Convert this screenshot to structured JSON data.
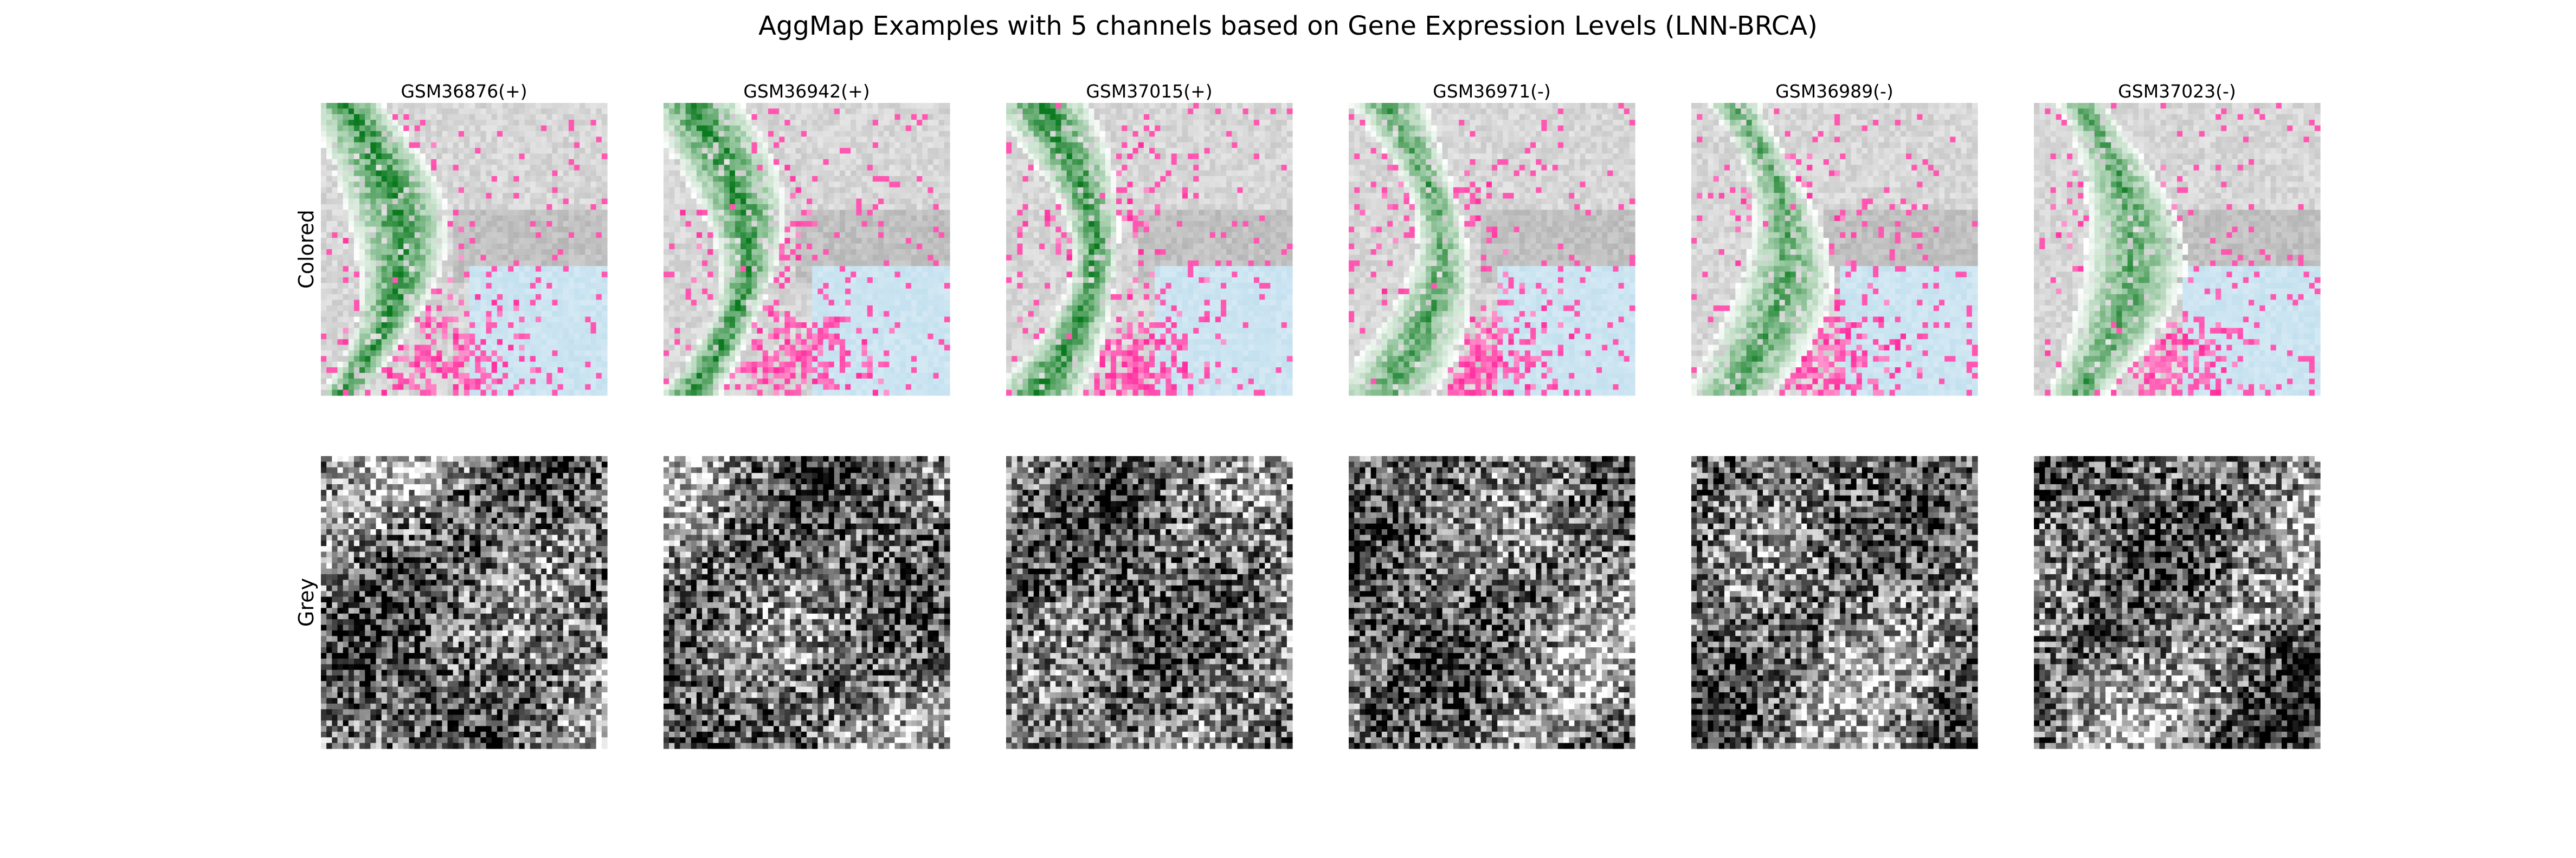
{
  "chart_data": {
    "type": "heatmap",
    "title": "AggMap Examples with 5 channels based on Gene Expression Levels (LNN-BRCA)",
    "grid": false,
    "axes_visible": false,
    "rows": [
      {
        "label": "Colored",
        "style": "colored"
      },
      {
        "label": "Grey",
        "style": "grey"
      }
    ],
    "samples": [
      {
        "name": "GSM36876(+)"
      },
      {
        "name": "GSM36942(+)"
      },
      {
        "name": "GSM37015(+)"
      },
      {
        "name": "GSM36971(-)"
      },
      {
        "name": "GSM36989(-)"
      },
      {
        "name": "GSM37023(-)"
      }
    ],
    "channel_colors": {
      "green_channel": "#0b7a1f",
      "pink_channel": "#ff2d9e",
      "light_blue_channel": "#c3e0ef",
      "grey_channel": "#b4b4b4",
      "light_grey_channel": "#e6e6e6"
    },
    "grey_scale": {
      "low": "#000000",
      "high": "#ffffff"
    }
  }
}
